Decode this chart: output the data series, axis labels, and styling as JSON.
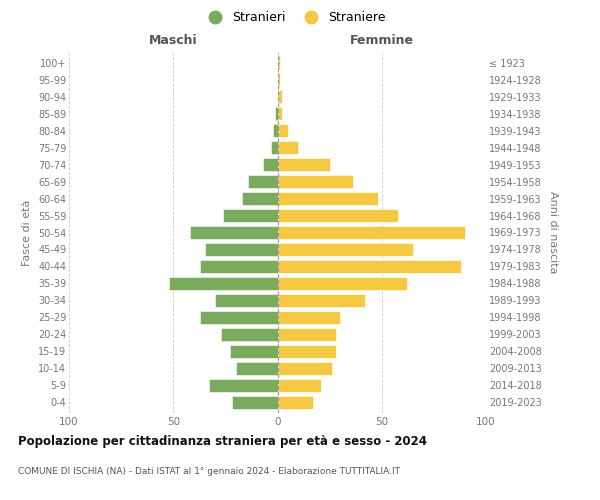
{
  "age_groups": [
    "0-4",
    "5-9",
    "10-14",
    "15-19",
    "20-24",
    "25-29",
    "30-34",
    "35-39",
    "40-44",
    "45-49",
    "50-54",
    "55-59",
    "60-64",
    "65-69",
    "70-74",
    "75-79",
    "80-84",
    "85-89",
    "90-94",
    "95-99",
    "100+"
  ],
  "birth_years": [
    "2019-2023",
    "2014-2018",
    "2009-2013",
    "2004-2008",
    "1999-2003",
    "1994-1998",
    "1989-1993",
    "1984-1988",
    "1979-1983",
    "1974-1978",
    "1969-1973",
    "1964-1968",
    "1959-1963",
    "1954-1958",
    "1949-1953",
    "1944-1948",
    "1939-1943",
    "1934-1938",
    "1929-1933",
    "1924-1928",
    "≤ 1923"
  ],
  "maschi": [
    22,
    33,
    20,
    23,
    27,
    37,
    30,
    52,
    37,
    35,
    42,
    26,
    17,
    14,
    7,
    3,
    2,
    1,
    0,
    0,
    0
  ],
  "femmine": [
    17,
    21,
    26,
    28,
    28,
    30,
    42,
    62,
    88,
    65,
    90,
    58,
    48,
    36,
    25,
    10,
    5,
    2,
    2,
    1,
    1
  ],
  "color_maschi": "#7aaa5e",
  "color_femmine": "#f5c842",
  "title": "Popolazione per cittadinanza straniera per età e sesso - 2024",
  "subtitle": "COMUNE DI ISCHIA (NA) - Dati ISTAT al 1° gennaio 2024 - Elaborazione TUTTITALIA.IT",
  "xlabel_left": "Maschi",
  "xlabel_right": "Femmine",
  "ylabel_left": "Fasce di età",
  "ylabel_right": "Anni di nascita",
  "legend_maschi": "Stranieri",
  "legend_femmine": "Straniere",
  "xlim": 100,
  "background_color": "#ffffff"
}
